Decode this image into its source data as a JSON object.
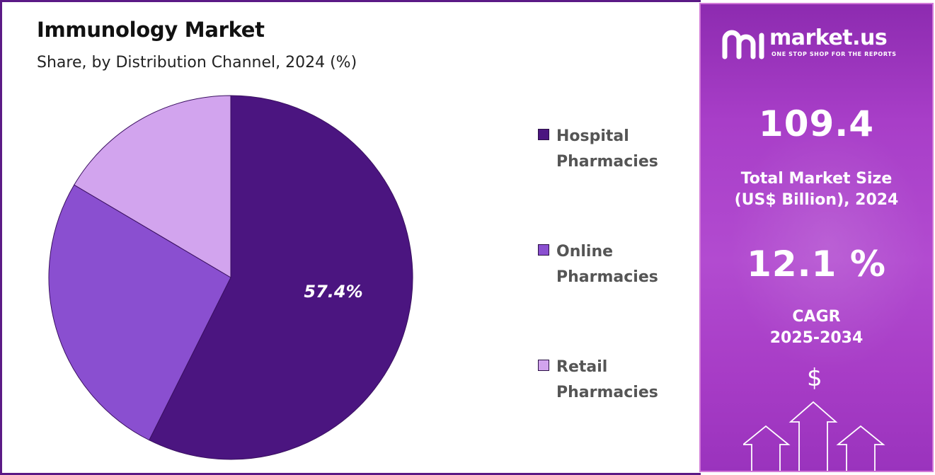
{
  "header": {
    "title": "Immunology Market",
    "subtitle": "Share, by Distribution Channel, 2024 (%)"
  },
  "chart_data": {
    "type": "pie",
    "title": "Immunology Market",
    "subtitle": "Share, by Distribution Channel, 2024 (%)",
    "slices": [
      {
        "label": "Hospital Pharmacies",
        "value": 57.4,
        "color": "#4b1580",
        "data_label": "57.4%"
      },
      {
        "label": "Online Pharmacies",
        "value": 26.1,
        "color": "#8a4fd0",
        "data_label": ""
      },
      {
        "label": "Retail Pharmacies",
        "value": 16.5,
        "color": "#d2a4ee",
        "data_label": ""
      }
    ],
    "legend_position": "right"
  },
  "legend": {
    "items": [
      {
        "line1": "Hospital",
        "line2": "Pharmacies",
        "color": "#4b1580"
      },
      {
        "line1": "Online",
        "line2": "Pharmacies",
        "color": "#8a4fd0"
      },
      {
        "line1": "Retail",
        "line2": "Pharmacies",
        "color": "#d2a4ee"
      }
    ]
  },
  "sidebar": {
    "brand": "market.us",
    "tagline": "ONE STOP SHOP FOR THE REPORTS",
    "market_size_value": "109.4",
    "market_size_line1": "Total Market Size",
    "market_size_line2": "(US$ Billion), 2024",
    "cagr_value": "12.1 %",
    "cagr_line1": "CAGR",
    "cagr_line2": "2025-2034",
    "currency_symbol": "$",
    "accent_color": "#a83ec8"
  }
}
